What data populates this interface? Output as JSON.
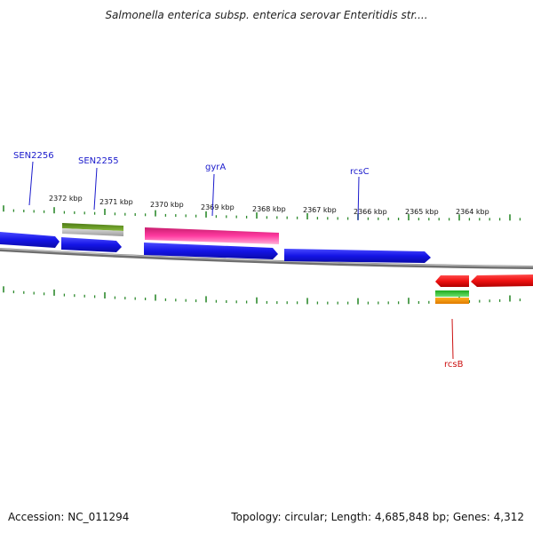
{
  "title": "Salmonella enterica subsp. enterica serovar Enteritidis str....",
  "footer": {
    "accession": "Accession: NC_011294",
    "summary": "Topology: circular; Length: 4,685,848 bp; Genes: 4,312"
  },
  "colors": {
    "backbone": "#777777",
    "tick": "#2e8b2e",
    "blue_gene": "#1a1aee",
    "magenta_gene": "#ee2a8a",
    "red_gene": "#ee1111",
    "green_feature": "#5a8a1e",
    "gray_feature": "#bbbbbb",
    "lightgreen_feature": "#2ec82e",
    "orange_feature": "#ff9900",
    "label_blue": "#1a1acc",
    "label_red": "#cc1111"
  },
  "scale_labels": [
    "2372 kbp",
    "2371 kbp",
    "2370 kbp",
    "2369 kbp",
    "2368 kbp",
    "2367 kbp",
    "2366 kbp",
    "2365 kbp",
    "2364 kbp"
  ],
  "gene_labels": [
    {
      "name": "SEN2256",
      "color": "blue"
    },
    {
      "name": "SEN2255",
      "color": "blue"
    },
    {
      "name": "gyrA",
      "color": "blue"
    },
    {
      "name": "rcsC",
      "color": "blue"
    },
    {
      "name": "rcsB",
      "color": "red"
    }
  ]
}
